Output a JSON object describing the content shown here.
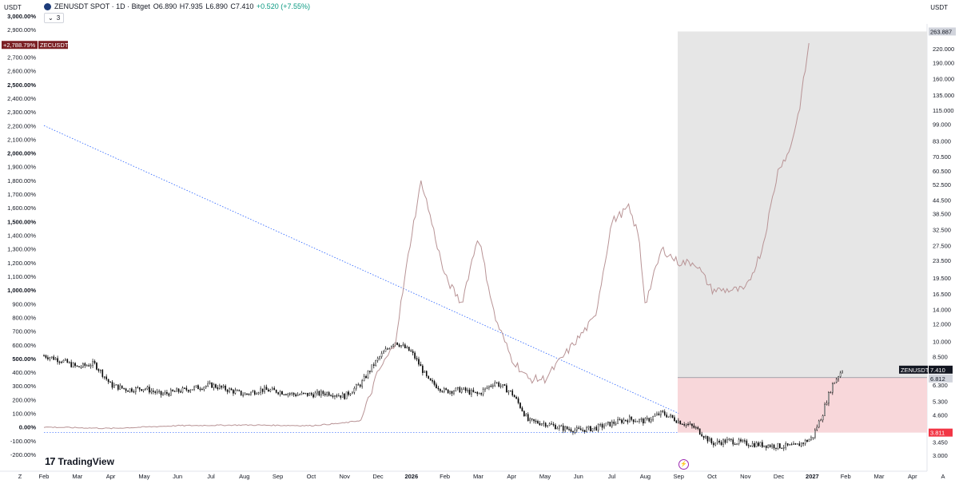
{
  "header": {
    "currency_left": "USDT",
    "currency_right": "USDT",
    "symbol_title": "ZENUSDT SPOT · 1D · Bitget",
    "ohlc": [
      {
        "label": "O",
        "value": "6.890"
      },
      {
        "label": "H",
        "value": "7.935"
      },
      {
        "label": "L",
        "value": "6.890"
      },
      {
        "label": "C",
        "value": "7.410"
      }
    ],
    "change": "+0.520 (+7.55%)",
    "indicator_count": "3"
  },
  "chart_data": {
    "type": "line",
    "title": "ZENUSDT SPOT · 1D · Bitget",
    "left_axis_ticks": [
      "3,000.00%",
      "2,900.00%",
      "2,800.00%",
      "2,700.00%",
      "2,600.00%",
      "2,500.00%",
      "2,400.00%",
      "2,300.00%",
      "2,200.00%",
      "2,100.00%",
      "2,000.00%",
      "1,900.00%",
      "1,800.00%",
      "1,700.00%",
      "1,600.00%",
      "1,500.00%",
      "1,400.00%",
      "1,300.00%",
      "1,200.00%",
      "1,100.00%",
      "1,000.00%",
      "900.00%",
      "800.00%",
      "700.00%",
      "600.00%",
      "500.00%",
      "400.00%",
      "300.00%",
      "200.00%",
      "100.00%",
      "0.00%",
      "-100.00%",
      "-200.00%"
    ],
    "left_axis_bold": [
      "3,000.00%",
      "2,500.00%",
      "2,000.00%",
      "1,500.00%",
      "1,000.00%",
      "500.00%",
      "0.00%"
    ],
    "right_axis_ticks": [
      "220.000",
      "190.000",
      "160.000",
      "135.000",
      "115.000",
      "99.000",
      "83.000",
      "70.500",
      "60.500",
      "52.500",
      "44.500",
      "38.500",
      "32.500",
      "27.500",
      "23.500",
      "19.500",
      "16.500",
      "14.000",
      "12.000",
      "10.000",
      "8.500",
      "6.300",
      "5.300",
      "4.600",
      "3.450",
      "3.000"
    ],
    "x_ticks": [
      "Z",
      "Feb",
      "Mar",
      "Apr",
      "May",
      "Jun",
      "Jul",
      "Aug",
      "Sep",
      "Oct",
      "Nov",
      "Dec",
      "2026",
      "Feb",
      "Mar",
      "Apr",
      "May",
      "Jun",
      "Jul",
      "Aug",
      "Sep",
      "Oct",
      "Nov",
      "Dec",
      "2027",
      "Feb",
      "Mar",
      "Apr",
      "A"
    ],
    "x_bold": [
      "2026",
      "2027"
    ],
    "series": [
      {
        "name": "ZENUSDT",
        "kind": "candles",
        "close_path": [
          [
            0,
            8.6
          ],
          [
            0.5,
            8.2
          ],
          [
            1,
            7.6
          ],
          [
            1.5,
            7.9
          ],
          [
            2,
            6.3
          ],
          [
            2.5,
            6.0
          ],
          [
            3,
            6.1
          ],
          [
            3.5,
            5.7
          ],
          [
            4,
            5.9
          ],
          [
            4.5,
            6.1
          ],
          [
            5,
            6.3
          ],
          [
            5.5,
            6.0
          ],
          [
            6,
            5.7
          ],
          [
            6.5,
            6.0
          ],
          [
            7,
            5.9
          ],
          [
            7.5,
            5.7
          ],
          [
            8,
            5.7
          ],
          [
            8.5,
            5.8
          ],
          [
            9,
            5.6
          ],
          [
            9.5,
            6.4
          ],
          [
            10,
            8.3
          ],
          [
            10.5,
            10.0
          ],
          [
            11,
            8.9
          ],
          [
            11.5,
            6.6
          ],
          [
            12,
            5.9
          ],
          [
            12.5,
            6.0
          ],
          [
            13,
            5.7
          ],
          [
            13.5,
            6.5
          ],
          [
            14,
            5.8
          ],
          [
            14.5,
            4.3
          ],
          [
            15,
            4.2
          ],
          [
            15.5,
            4.0
          ],
          [
            16,
            3.9
          ],
          [
            16.5,
            4.0
          ],
          [
            17,
            4.2
          ],
          [
            17.5,
            4.4
          ],
          [
            18,
            4.3
          ],
          [
            18.5,
            4.7
          ],
          [
            19,
            4.3
          ],
          [
            19.5,
            4.0
          ],
          [
            20,
            3.4
          ],
          [
            20.5,
            3.5
          ],
          [
            21,
            3.4
          ],
          [
            21.5,
            3.35
          ],
          [
            22,
            3.3
          ],
          [
            22.5,
            3.3
          ],
          [
            23,
            3.6
          ],
          [
            23.3,
            4.6
          ],
          [
            23.6,
            6.3
          ],
          [
            23.9,
            7.41
          ]
        ]
      },
      {
        "name": "ZECUSDT",
        "kind": "line",
        "unit": "percent",
        "path": [
          [
            0,
            0
          ],
          [
            2,
            -10
          ],
          [
            4,
            10
          ],
          [
            6,
            15
          ],
          [
            8,
            10
          ],
          [
            9,
            30
          ],
          [
            9.5,
            50
          ],
          [
            10,
            400
          ],
          [
            10.5,
            600
          ],
          [
            11,
            1400
          ],
          [
            11.3,
            1800
          ],
          [
            11.5,
            1600
          ],
          [
            12,
            1100
          ],
          [
            12.5,
            900
          ],
          [
            13,
            1400
          ],
          [
            13.5,
            800
          ],
          [
            14,
            500
          ],
          [
            14.5,
            350
          ],
          [
            15,
            350
          ],
          [
            15.5,
            500
          ],
          [
            16,
            650
          ],
          [
            16.5,
            800
          ],
          [
            17,
            1500
          ],
          [
            17.5,
            1600
          ],
          [
            17.8,
            1400
          ],
          [
            18,
            900
          ],
          [
            18.5,
            1300
          ],
          [
            19,
            1200
          ],
          [
            19.5,
            1200
          ],
          [
            20,
            1000
          ],
          [
            20.5,
            1000
          ],
          [
            21,
            1000
          ],
          [
            21.5,
            1300
          ],
          [
            22,
            1900
          ],
          [
            22.3,
            2000
          ],
          [
            22.6,
            2300
          ],
          [
            22.9,
            2788.79
          ]
        ]
      }
    ],
    "trendline": {
      "from": [
        "Feb 2025",
        "2,200.00%"
      ],
      "to": [
        "Sep 2026",
        "100.00%"
      ],
      "style": "dotted"
    },
    "projection": {
      "top_label": "263.887",
      "entry_label": "6.812",
      "stop_label": "3.811"
    },
    "price_tags": [
      {
        "name": "ZENUSDT",
        "value": "7.410"
      },
      {
        "name": "ZECUSDT",
        "value": "+2,788.79%"
      }
    ],
    "colors": {
      "candles": "#000000",
      "zec_line": "#b89395",
      "trendline": "#2962ff",
      "profit_zone": "#e6e6e6",
      "loss_zone": "#f8d7da",
      "zec_tag": "#7b1f23",
      "stop_tag": "#f23645"
    }
  },
  "footer": {
    "logo_text": "TradingView"
  }
}
